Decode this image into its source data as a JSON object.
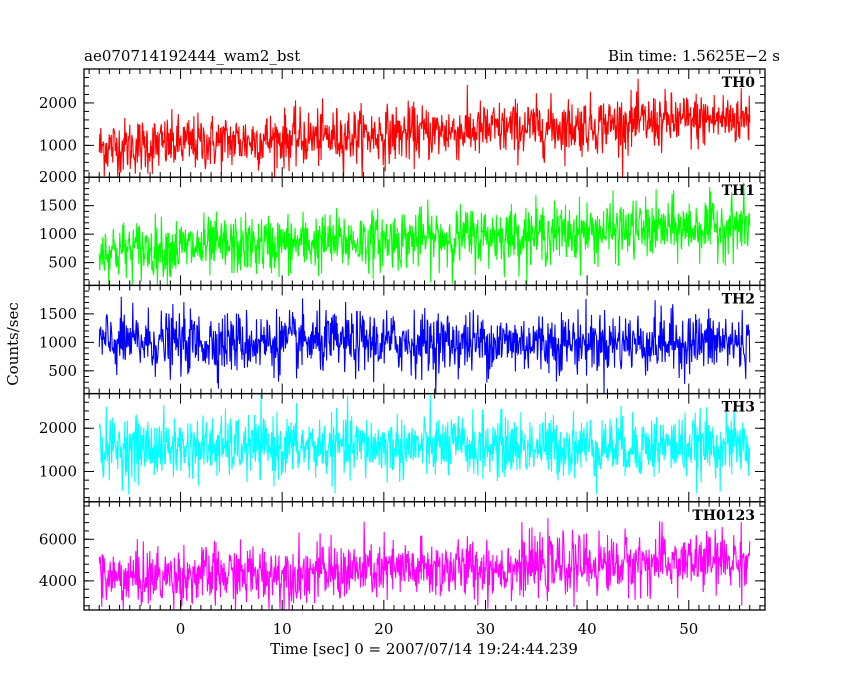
{
  "chart_data": {
    "type": "line",
    "title_left": "ae070714192444_wam2_bst",
    "title_right": "Bin time: 1.5625E−2 s",
    "xlabel": "Time [sec] 0 = 2007/07/14 19:24:44.239",
    "ylabel": "Counts/sec",
    "xlim": [
      -9.5,
      57.5
    ],
    "x_range": [
      -8,
      56
    ],
    "x_ticks": [
      0,
      10,
      20,
      30,
      40,
      50
    ],
    "x_tick_labels": [
      "0",
      "10",
      "20",
      "30",
      "40",
      "50"
    ],
    "grid": false,
    "panels": [
      {
        "name": "TH0",
        "color": "#ff0000",
        "ylim": [
          250,
          2800
        ],
        "y_ticks": [
          1000,
          2000
        ],
        "y_tick_labels": [
          "1000",
          "2000"
        ],
        "series": {
          "start_mean": 950,
          "end_mean": 1650,
          "noise_sd": 330,
          "min": 250,
          "max": 2800
        }
      },
      {
        "name": "TH1",
        "color": "#00ff00",
        "ylim": [
          100,
          2000
        ],
        "y_ticks": [
          500,
          1000,
          1500,
          2000
        ],
        "y_tick_labels": [
          "500",
          "1000",
          "1500",
          "2000"
        ],
        "series": {
          "start_mean": 700,
          "end_mean": 1150,
          "noise_sd": 260,
          "min": 100,
          "max": 2000
        }
      },
      {
        "name": "TH2",
        "color": "#0000ff",
        "ylim": [
          100,
          2000
        ],
        "y_ticks": [
          500,
          1000,
          1500
        ],
        "y_tick_labels": [
          "500",
          "1000",
          "1500"
        ],
        "series": {
          "start_mean": 1000,
          "end_mean": 1000,
          "noise_sd": 270,
          "min": 100,
          "max": 2000
        }
      },
      {
        "name": "TH3",
        "color": "#00ffff",
        "ylim": [
          300,
          2800
        ],
        "y_ticks": [
          1000,
          2000
        ],
        "y_tick_labels": [
          "1000",
          "2000"
        ],
        "series": {
          "start_mean": 1550,
          "end_mean": 1600,
          "noise_sd": 360,
          "min": 300,
          "max": 2800
        }
      },
      {
        "name": "TH0123",
        "color": "#ff00ff",
        "ylim": [
          2600,
          7800
        ],
        "y_ticks": [
          4000,
          6000
        ],
        "y_tick_labels": [
          "4000",
          "6000"
        ],
        "series": {
          "start_mean": 4100,
          "end_mean": 5000,
          "noise_sd": 720,
          "min": 2600,
          "max": 7800
        }
      }
    ]
  }
}
